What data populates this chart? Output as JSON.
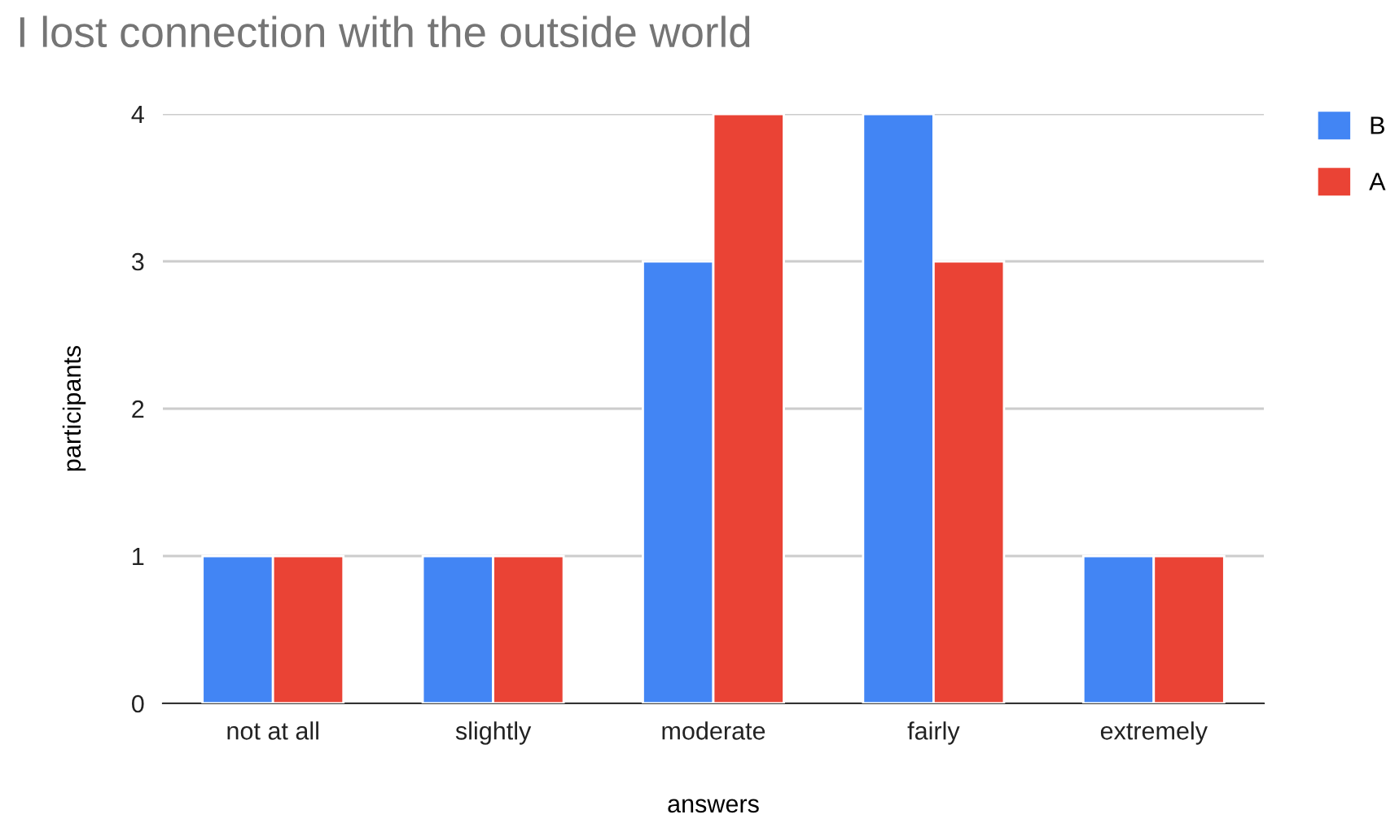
{
  "chart_data": {
    "type": "bar",
    "title": "I lost connection with the outside world",
    "xlabel": "answers",
    "ylabel": "participants",
    "categories": [
      "not at all",
      "slightly",
      "moderate",
      "fairly",
      "extremely"
    ],
    "series": [
      {
        "name": "B",
        "color": "#4285f4",
        "values": [
          1,
          1,
          3,
          4,
          1
        ]
      },
      {
        "name": "A",
        "color": "#ea4335",
        "values": [
          1,
          1,
          4,
          3,
          1
        ]
      }
    ],
    "ylim": [
      0,
      4
    ],
    "yticks": [
      0,
      1,
      2,
      3,
      4
    ],
    "grid": "y",
    "legend": "top right"
  }
}
